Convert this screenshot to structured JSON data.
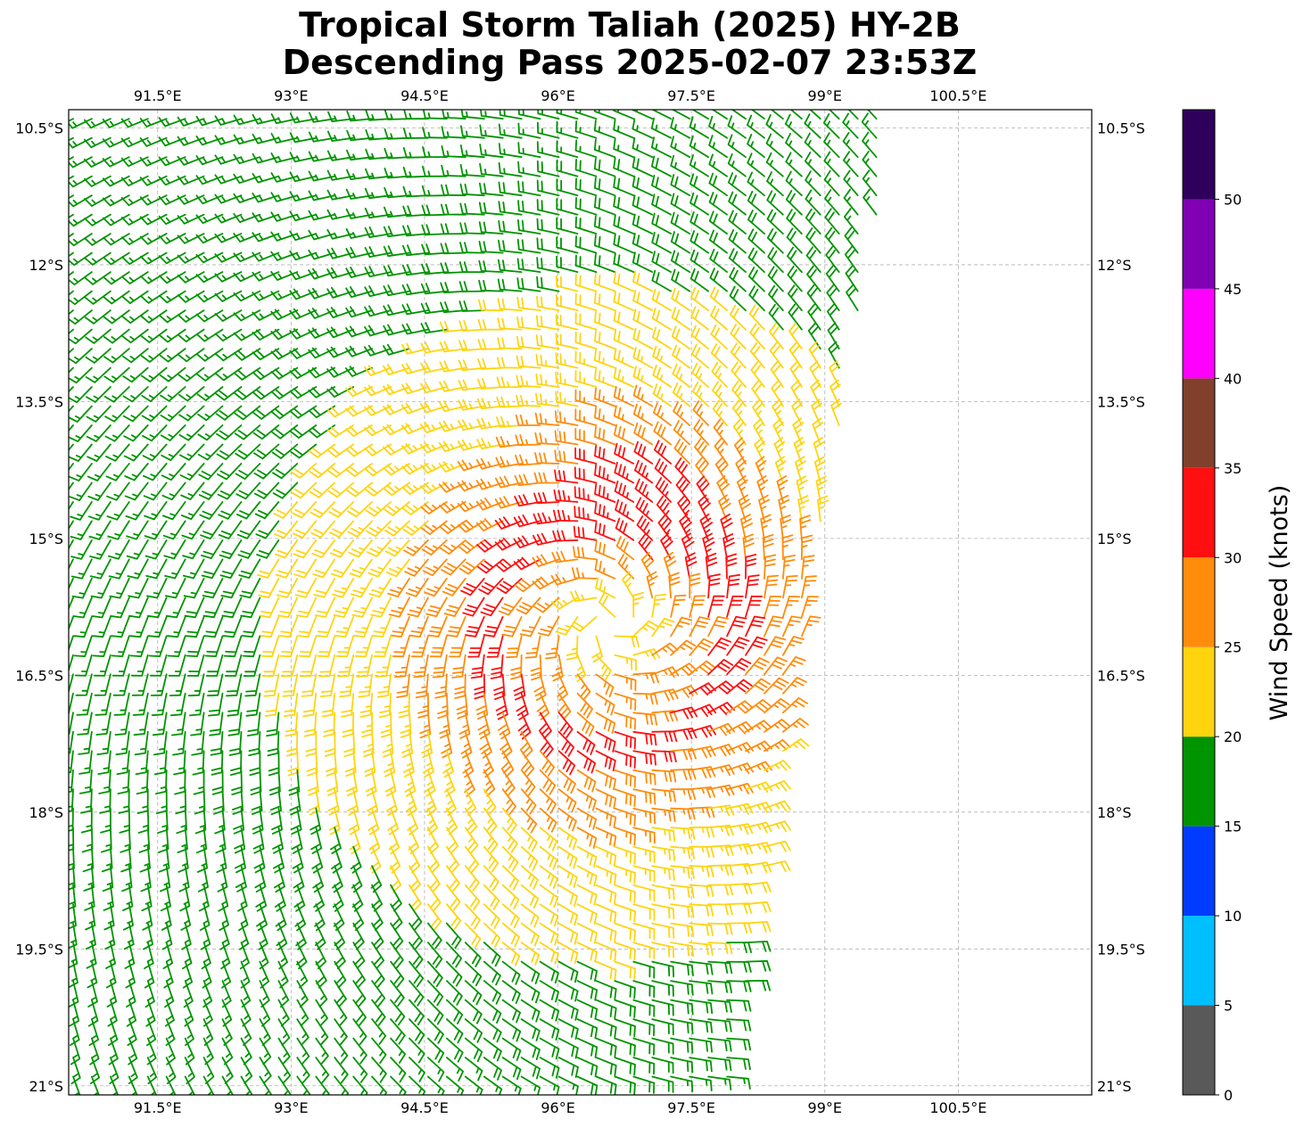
{
  "chart_data": {
    "type": "wind-barb-map",
    "title_line1": "Tropical Storm Taliah (2025) HY-2B",
    "title_line2": "Descending Pass 2025-02-07 23:53Z",
    "lon_range": [
      90.5,
      102
    ],
    "lat_range": [
      -21.1,
      -10.3
    ],
    "lon_ticks": [
      91.5,
      93,
      94.5,
      96,
      97.5,
      99,
      100.5
    ],
    "lon_tick_labels": [
      "91.5°E",
      "93°E",
      "94.5°E",
      "96°E",
      "97.5°E",
      "99°E",
      "100.5°E"
    ],
    "lat_ticks": [
      -10.5,
      -12,
      -13.5,
      -15,
      -16.5,
      -18,
      -19.5,
      -21
    ],
    "lat_tick_labels": [
      "10.5°S",
      "12°S",
      "13.5°S",
      "15°S",
      "16.5°S",
      "18°S",
      "19.5°S",
      "21°S"
    ],
    "grid": true,
    "storm_center": {
      "lon": 96.6,
      "lat": -15.95
    },
    "swath": {
      "top_edge_lat": -10.3,
      "east_edge": [
        [
          99.8,
          -10.3
        ],
        [
          98.9,
          -15.2
        ],
        [
          97.9,
          -21.1
        ]
      ],
      "bottom_edge_lat": -21.1,
      "west_edge_lon": 90.5
    },
    "wind_field": {
      "model": "cyclonic-vortex",
      "hemisphere": "southern",
      "max_wind_kt": 34,
      "max_wind_location": {
        "lon": 97.0,
        "lat": -14.6
      },
      "radius_of_max_wind_deg": 1.3
    },
    "colorbar": {
      "label": "Wind Speed (knots)",
      "tick_labels": [
        "0",
        "5",
        "10",
        "15",
        "20",
        "25",
        "30",
        "35",
        "40",
        "45",
        "50"
      ],
      "bins": [
        {
          "min": 0,
          "max": 5,
          "color": "#595959"
        },
        {
          "min": 5,
          "max": 10,
          "color": "#00bfff"
        },
        {
          "min": 10,
          "max": 15,
          "color": "#003cff"
        },
        {
          "min": 15,
          "max": 20,
          "color": "#009400"
        },
        {
          "min": 20,
          "max": 25,
          "color": "#ffd40f"
        },
        {
          "min": 25,
          "max": 30,
          "color": "#ff8c0a"
        },
        {
          "min": 30,
          "max": 35,
          "color": "#ff0f0f"
        },
        {
          "min": 35,
          "max": 40,
          "color": "#80402b"
        },
        {
          "min": 40,
          "max": 45,
          "color": "#ff00ff"
        },
        {
          "min": 45,
          "max": 50,
          "color": "#8000b3"
        },
        {
          "min": 50,
          "max": 55,
          "color": "#2e005c"
        }
      ]
    }
  }
}
